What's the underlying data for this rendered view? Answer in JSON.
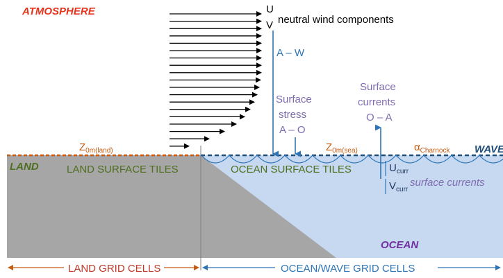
{
  "labels": {
    "atmosphere": "ATMOSPHERE",
    "land": "LAND",
    "ocean": "OCEAN",
    "wave": "WAVE",
    "land_surface_tiles": "LAND SURFACE TILES",
    "ocean_surface_tiles": "OCEAN SURFACE TILES",
    "land_grid_cells": "LAND GRID CELLS",
    "ocean_wave_grid_cells": "OCEAN/WAVE GRID CELLS",
    "neutral_wind_components": "neutral wind components",
    "U": "U",
    "V": "V",
    "a_w": "A – W",
    "surface_stress_1": "Surface",
    "surface_stress_2": "stress",
    "surface_stress_3": "A – O",
    "surface_currents_1": "Surface",
    "surface_currents_2": "currents",
    "surface_currents_3": "O – A",
    "z0m_main": "Z",
    "z0m_land_sub": "0m(land)",
    "z0m_sea_sub": "0m(sea)",
    "alpha_main": "α",
    "alpha_sub": "Charnock",
    "ucurr_main": "U",
    "vcurr_main": "V",
    "curr_sub": "curr",
    "surface_currents_label": "surface currents"
  },
  "colors": {
    "atmosphere_text": "#e5331d",
    "land_fill": "#a6a6a6",
    "land_text": "#4f6f1f",
    "ocean_fill": "#c6d9f1",
    "ocean_text": "#7030a0",
    "roughness_text": "#c55a11",
    "land_surface_line": "#c55a11",
    "sea_surface_line": "#1f4e79",
    "stress_blue": "#2e75b6",
    "purple_text": "#7f6bb0",
    "grid_cells_text": "#2e75b6",
    "land_grid_text": "#c0392b"
  }
}
